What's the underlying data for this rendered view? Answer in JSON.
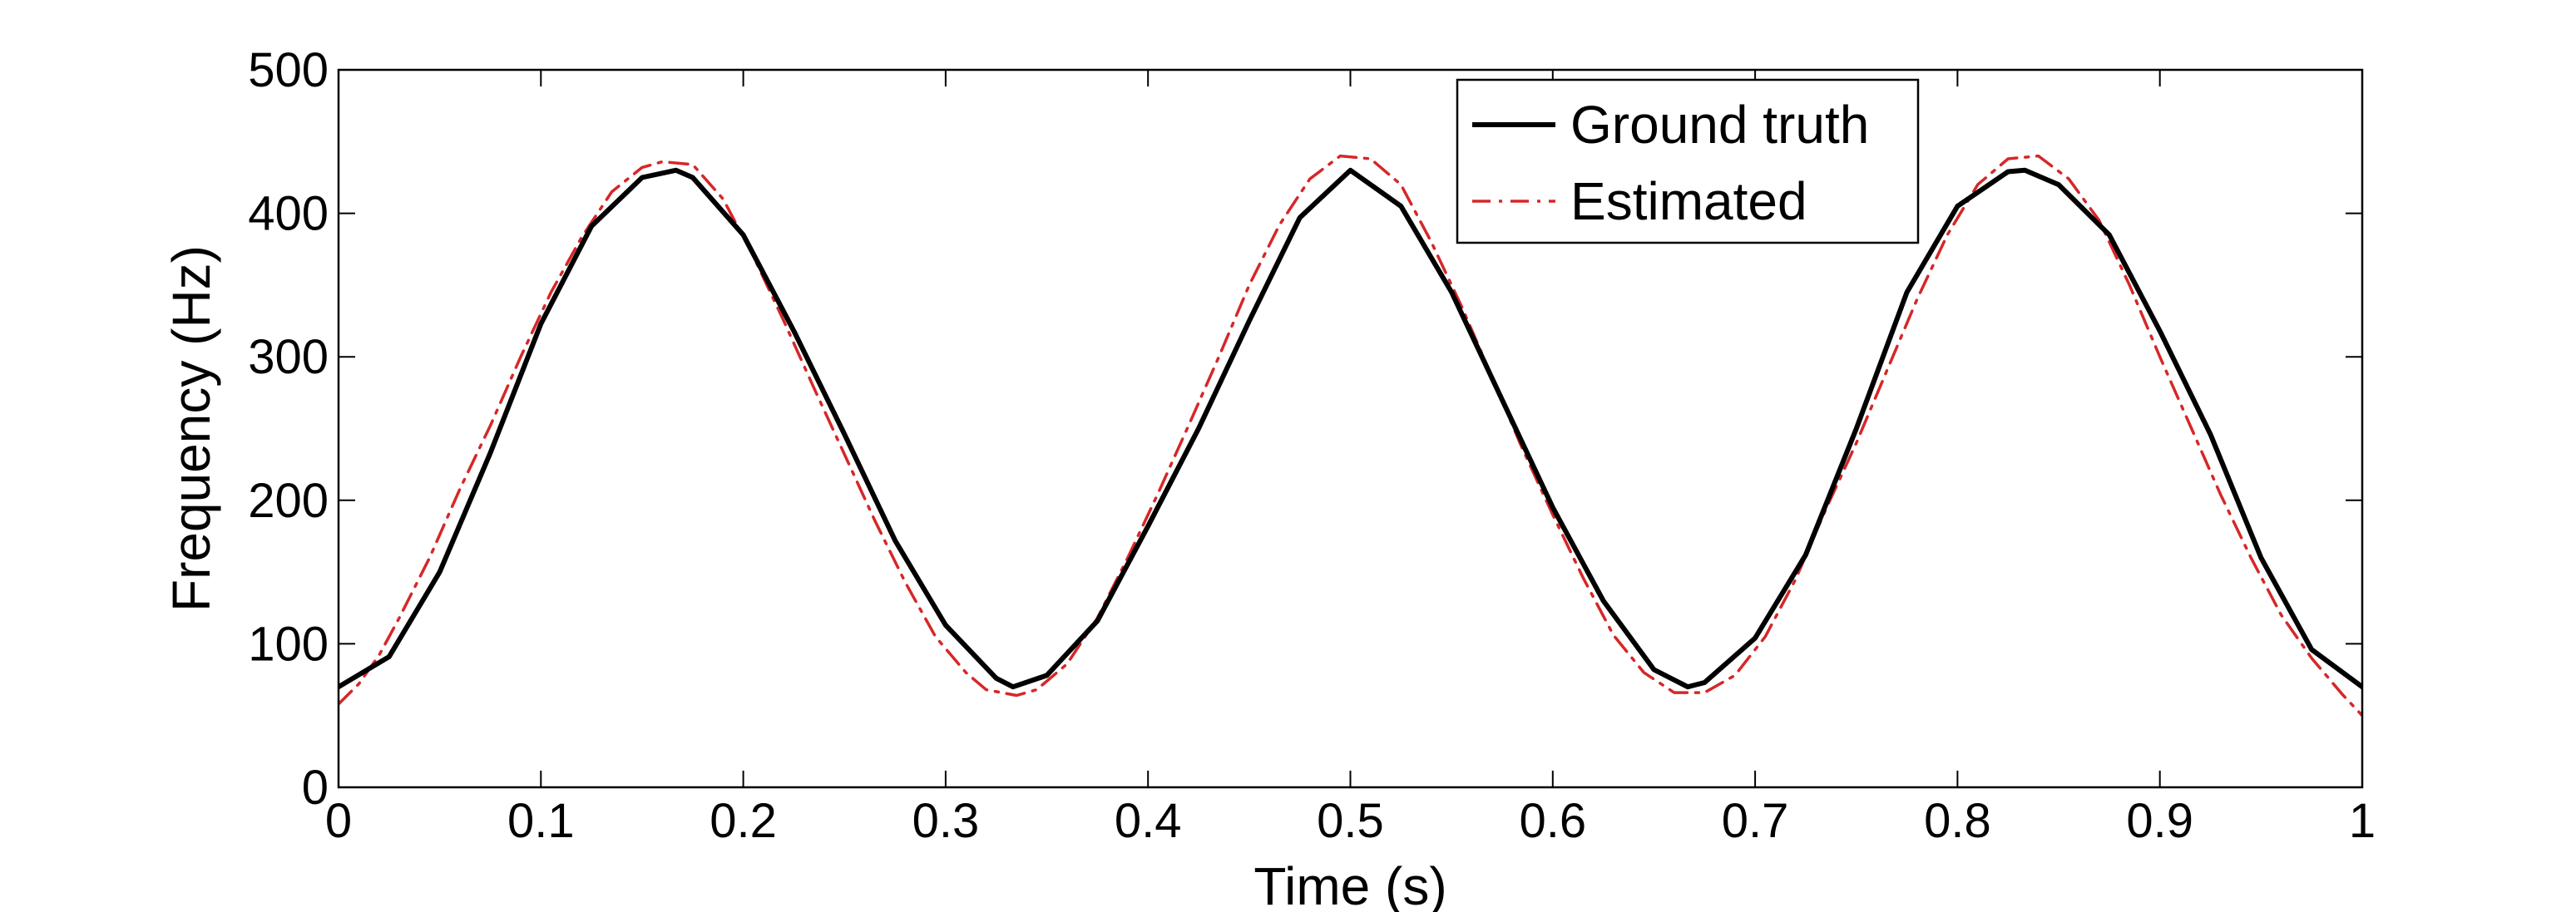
{
  "chart_data": {
    "type": "line",
    "title": "",
    "xlabel": "Time (s)",
    "ylabel": "Frequency (Hz)",
    "xlim": [
      0,
      1
    ],
    "ylim": [
      0,
      500
    ],
    "xticks": [
      0,
      0.1,
      0.2,
      0.3,
      0.4,
      0.5,
      0.6,
      0.7,
      0.8,
      0.9,
      1
    ],
    "xtick_labels": [
      "0",
      "0.1",
      "0.2",
      "0.3",
      "0.4",
      "0.5",
      "0.6",
      "0.7",
      "0.8",
      "0.9",
      "1"
    ],
    "yticks": [
      0,
      100,
      200,
      300,
      400,
      500
    ],
    "ytick_labels": [
      "0",
      "100",
      "200",
      "300",
      "400",
      "500"
    ],
    "grid": false,
    "legend_position": "top-center",
    "series": [
      {
        "name": "Ground truth",
        "style": "solid",
        "color": "#000000",
        "x": [
          0,
          0.025,
          0.05,
          0.075,
          0.1,
          0.125,
          0.15,
          0.1667,
          0.175,
          0.2,
          0.225,
          0.25,
          0.275,
          0.3,
          0.325,
          0.3333,
          0.35,
          0.375,
          0.4,
          0.425,
          0.45,
          0.475,
          0.5,
          0.525,
          0.55,
          0.575,
          0.6,
          0.625,
          0.65,
          0.6667,
          0.675,
          0.7,
          0.725,
          0.75,
          0.775,
          0.8,
          0.825,
          0.8333,
          0.85,
          0.875,
          0.9,
          0.925,
          0.95,
          0.975,
          1
        ],
        "y": [
          70,
          91,
          150,
          233,
          323,
          391,
          425,
          430,
          425,
          385,
          318,
          246,
          172,
          113,
          76,
          70,
          78,
          116,
          182,
          250,
          325,
          397,
          430,
          405,
          345,
          270,
          195,
          130,
          82,
          70,
          73,
          104,
          162,
          250,
          345,
          405,
          429,
          430,
          420,
          385,
          318,
          246,
          160,
          96,
          70
        ]
      },
      {
        "name": "Estimated",
        "style": "dash-dot",
        "color": "#d62728",
        "x": [
          0,
          0.01,
          0.02,
          0.03,
          0.045,
          0.06,
          0.075,
          0.09,
          0.105,
          0.12,
          0.135,
          0.15,
          0.16,
          0.175,
          0.19,
          0.205,
          0.22,
          0.235,
          0.25,
          0.265,
          0.28,
          0.295,
          0.31,
          0.32,
          0.335,
          0.345,
          0.36,
          0.375,
          0.39,
          0.405,
          0.42,
          0.435,
          0.45,
          0.465,
          0.48,
          0.495,
          0.51,
          0.525,
          0.54,
          0.555,
          0.57,
          0.585,
          0.6,
          0.615,
          0.63,
          0.645,
          0.66,
          0.675,
          0.69,
          0.705,
          0.72,
          0.735,
          0.75,
          0.765,
          0.78,
          0.795,
          0.81,
          0.825,
          0.84,
          0.855,
          0.87,
          0.885,
          0.9,
          0.915,
          0.93,
          0.945,
          0.96,
          0.975,
          0.99,
          1
        ],
        "y": [
          58,
          72,
          92,
          118,
          160,
          208,
          252,
          300,
          345,
          383,
          415,
          432,
          436,
          434,
          410,
          370,
          325,
          278,
          232,
          186,
          143,
          105,
          80,
          68,
          64,
          68,
          86,
          118,
          160,
          205,
          252,
          300,
          350,
          392,
          424,
          440,
          438,
          420,
          380,
          335,
          286,
          236,
          190,
          146,
          106,
          80,
          66,
          66,
          78,
          105,
          145,
          194,
          240,
          290,
          340,
          385,
          420,
          438,
          440,
          424,
          395,
          350,
          300,
          252,
          204,
          160,
          120,
          90,
          65,
          50
        ]
      }
    ]
  }
}
